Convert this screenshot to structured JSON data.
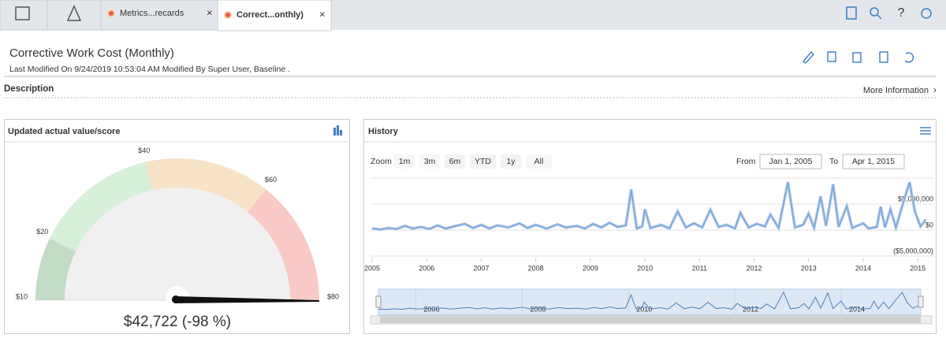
{
  "tabs": [
    "Metrics...recards",
    "Correct...onthly)"
  ],
  "header": {
    "title": "Corrective Work Cost (Monthly)",
    "modified": "Last Modified On 9/24/2019 10:53:04 AM Modified By Super User, Baseline ."
  },
  "description": {
    "label": "Description",
    "link": "More Information"
  },
  "gauge": {
    "type": "gauge",
    "title": "Updated actual value/score",
    "range": [
      10,
      80
    ],
    "ticks": [
      {
        "value": 10,
        "label": "$10"
      },
      {
        "value": 20,
        "label": "$20"
      },
      {
        "value": 40,
        "label": "$40"
      },
      {
        "value": 60,
        "label": "$60"
      },
      {
        "value": 80,
        "label": "$80"
      }
    ],
    "bands": [
      {
        "from": 10,
        "to": 20,
        "color": "#c3dcc5"
      },
      {
        "from": 20,
        "to": 40,
        "color": "#d7f0d9"
      },
      {
        "from": 40,
        "to": 60,
        "color": "#f8e2c8"
      },
      {
        "from": 60,
        "to": 80,
        "color": "#f8c9c5"
      }
    ],
    "value_label": "$42,722 (-98 %)"
  },
  "chart_data": {
    "type": "line",
    "title": "History",
    "x": [
      2005.0,
      2005.15,
      2005.3,
      2005.45,
      2005.6,
      2005.75,
      2005.9,
      2006.05,
      2006.2,
      2006.35,
      2006.5,
      2006.7,
      2006.85,
      2007.0,
      2007.15,
      2007.3,
      2007.5,
      2007.7,
      2007.85,
      2008.0,
      2008.2,
      2008.4,
      2008.55,
      2008.75,
      2008.9,
      2009.05,
      2009.2,
      2009.35,
      2009.5,
      2009.65,
      2009.75,
      2009.85,
      2009.95,
      2010.0,
      2010.1,
      2010.3,
      2010.45,
      2010.6,
      2010.75,
      2010.9,
      2011.05,
      2011.2,
      2011.35,
      2011.5,
      2011.65,
      2011.75,
      2011.9,
      2012.05,
      2012.2,
      2012.3,
      2012.45,
      2012.62,
      2012.75,
      2012.9,
      2013.0,
      2013.1,
      2013.22,
      2013.32,
      2013.45,
      2013.55,
      2013.7,
      2013.8,
      2014.0,
      2014.1,
      2014.25,
      2014.32,
      2014.4,
      2014.5,
      2014.6,
      2014.75,
      2014.85,
      2014.95,
      2015.05,
      2015.15
    ],
    "series": [
      {
        "color": "#7fa9db",
        "values": [
          300000,
          100000,
          400000,
          200000,
          800000,
          300000,
          600000,
          200000,
          900000,
          300000,
          700000,
          1200000,
          400000,
          1000000,
          300000,
          900000,
          500000,
          1300000,
          400000,
          1000000,
          300000,
          1100000,
          500000,
          800000,
          300000,
          1200000,
          500000,
          1400000,
          600000,
          900000,
          7800000,
          300000,
          700000,
          4000000,
          400000,
          1000000,
          300000,
          3600000,
          500000,
          1300000,
          500000,
          3900000,
          600000,
          1000000,
          300000,
          3300000,
          500000,
          1200000,
          700000,
          3000000,
          400000,
          9200000,
          500000,
          1000000,
          3200000,
          400000,
          6500000,
          800000,
          8800000,
          600000,
          4600000,
          400000,
          1300000,
          300000,
          600000,
          4500000,
          500000,
          4000000,
          500000,
          5800000,
          9200000,
          3500000,
          700000,
          2000000
        ]
      }
    ],
    "xlim": [
      2005,
      2015.2
    ],
    "xticks": [
      2005,
      2006,
      2007,
      2008,
      2009,
      2010,
      2011,
      2012,
      2013,
      2014,
      2015
    ],
    "ylim": [
      -5000000,
      10000000
    ],
    "yticks": [
      {
        "value": -5000000,
        "label": "($5,000,000)"
      },
      {
        "value": 0,
        "label": "$0"
      },
      {
        "value": 5000000,
        "label": "$5,000,000"
      }
    ],
    "zoom": {
      "label": "Zoom",
      "buttons": [
        {
          "label": "1m",
          "enabled": false
        },
        {
          "label": "3m",
          "enabled": false
        },
        {
          "label": "6m",
          "enabled": true
        },
        {
          "label": "YTD",
          "enabled": true
        },
        {
          "label": "1y",
          "enabled": true
        },
        {
          "label": "All",
          "enabled": false
        }
      ]
    },
    "range": {
      "from_label": "From",
      "from": "Jan 1, 2005",
      "to_label": "To",
      "to": "Apr 1, 2015"
    },
    "navigator_ticks": [
      2006,
      2008,
      2010,
      2012,
      2014
    ]
  }
}
